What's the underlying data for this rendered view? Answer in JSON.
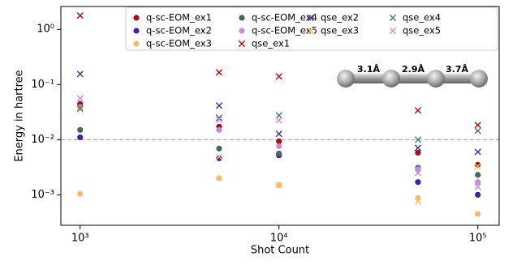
{
  "chart_data": {
    "type": "scatter",
    "xlabel": "Shot Count",
    "ylabel": "Energy in hartree",
    "log_x": true,
    "log_y": true,
    "xlim": [
      800,
      128000
    ],
    "ylim": [
      0.00028,
      2.6
    ],
    "xticks": [
      {
        "value": 1000,
        "label": "10³"
      },
      {
        "value": 10000,
        "label": "10⁴"
      },
      {
        "value": 100000,
        "label": "10⁵"
      }
    ],
    "yticks": [
      {
        "value": 0.001,
        "label": "10⁻³"
      },
      {
        "value": 0.01,
        "label": "10⁻²"
      },
      {
        "value": 0.1,
        "label": "10⁻¹"
      },
      {
        "value": 1,
        "label": "10⁰"
      }
    ],
    "reference_line": 0.01,
    "legend": "upper right",
    "x": [
      1000,
      5000,
      10000,
      50000,
      100000
    ],
    "series": [
      {
        "name": "q-sc-EOM_ex1",
        "color": "#a50f15",
        "marker": "o",
        "values": [
          0.0444,
          0.0172,
          0.0093,
          0.0058,
          0.0035
        ]
      },
      {
        "name": "q-sc-EOM_ex2",
        "color": "#3b22a8",
        "marker": "o",
        "values": [
          0.011,
          0.0046,
          0.0052,
          0.0017,
          0.001
        ]
      },
      {
        "name": "q-sc-EOM_ex3",
        "color": "#fdb863",
        "marker": "o",
        "values": [
          0.00104,
          0.002,
          0.0015,
          0.00087,
          0.00045
        ]
      },
      {
        "name": "q-sc-EOM_ex4",
        "color": "#3e6b5e",
        "marker": "o",
        "values": [
          0.015,
          0.0069,
          0.0056,
          0.0031,
          0.0023
        ]
      },
      {
        "name": "q-sc-EOM_ex5",
        "color": "#c98ad6",
        "marker": "o",
        "values": [
          0.039,
          0.015,
          0.0076,
          0.0029,
          0.0017
        ]
      },
      {
        "name": "qse_ex1",
        "color": "#c00000",
        "marker": "x",
        "values": [
          1.78,
          0.166,
          0.14,
          0.034,
          0.0184
        ]
      },
      {
        "name": "qse_ex2",
        "color": "#3a2ab0",
        "marker": "x",
        "values": [
          0.155,
          0.0415,
          0.0127,
          0.0071,
          0.006
        ]
      },
      {
        "name": "qse_ex3",
        "color": "#fdb863",
        "marker": "x",
        "values": [
          0.035,
          0.0049,
          0.0015,
          0.00077,
          0.0033
        ]
      },
      {
        "name": "qse_ex4",
        "color": "#3e7a6a",
        "marker": "x",
        "values": [
          0.037,
          0.025,
          0.0276,
          0.01,
          0.0145
        ]
      },
      {
        "name": "qse_ex5",
        "color": "#d08ad8",
        "marker": "x",
        "values": [
          0.056,
          0.023,
          0.0225,
          0.0025,
          0.0014
        ]
      }
    ],
    "annotations": [
      "3.1Å",
      "2.9Å",
      "3.7Å"
    ]
  }
}
